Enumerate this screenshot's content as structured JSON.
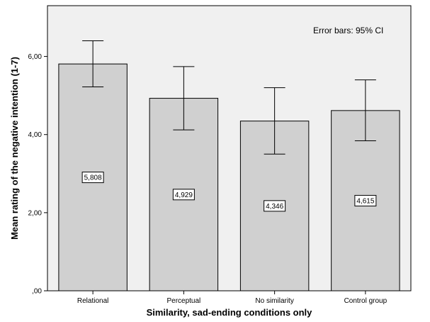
{
  "chart_data": {
    "type": "bar",
    "categories": [
      "Relational",
      "Perceptual",
      "No similarity",
      "Control group"
    ],
    "values": [
      5.808,
      4.929,
      4.346,
      4.615
    ],
    "value_labels": [
      "5,808",
      "4,929",
      "4,346",
      "4,615"
    ],
    "error_bars": {
      "label": "Error bars: 95% CI",
      "lower": [
        5.22,
        4.12,
        3.5,
        3.84
      ],
      "upper": [
        6.4,
        5.74,
        5.2,
        5.4
      ]
    },
    "ylim": [
      0,
      7.3
    ],
    "yticks": [
      {
        "value": 0,
        "label": ",00"
      },
      {
        "value": 2,
        "label": "2,00"
      },
      {
        "value": 4,
        "label": "4,00"
      },
      {
        "value": 6,
        "label": "6,00"
      }
    ],
    "xlabel": "Similarity, sad-ending conditions only",
    "ylabel": "Mean rating of the negative intention (1-7)",
    "grid": false,
    "colors": {
      "plot_background": "#f0f0f0",
      "bar_fill": "#d0d0d0",
      "bar_stroke": "#000000"
    }
  }
}
